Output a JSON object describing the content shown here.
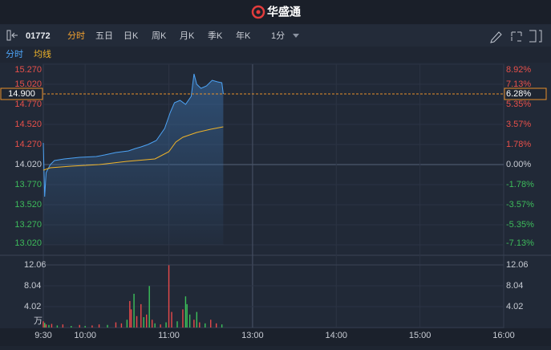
{
  "header": {
    "logo": "华盛通"
  },
  "toolbar": {
    "code": "01772",
    "tabs": [
      "分时",
      "五日",
      "日K",
      "周K",
      "月K",
      "季K",
      "年K"
    ],
    "active_tab": 0,
    "interval": "1分"
  },
  "chart_data": {
    "type": "line",
    "series": [
      {
        "name": "分时",
        "color": "#4da3f5",
        "x": [
          0,
          1,
          2,
          5,
          8,
          15,
          26,
          38,
          44,
          52,
          61,
          66,
          70,
          75,
          81,
          87,
          91,
          94,
          98,
          102,
          106,
          108,
          110,
          113,
          117,
          121,
          125,
          128,
          129
        ],
        "values": [
          14.29,
          13.62,
          13.92,
          14.02,
          14.07,
          14.09,
          14.11,
          14.12,
          14.14,
          14.17,
          14.19,
          14.22,
          14.24,
          14.27,
          14.32,
          14.47,
          14.67,
          14.79,
          14.82,
          14.77,
          14.87,
          15.15,
          15.02,
          14.97,
          15.0,
          15.07,
          15.05,
          15.04,
          14.9
        ]
      },
      {
        "name": "均线",
        "color": "#f0b429",
        "x": [
          0,
          5,
          20,
          40,
          60,
          80,
          90,
          95,
          100,
          110,
          120,
          129
        ],
        "values": [
          13.95,
          13.98,
          14.0,
          14.02,
          14.06,
          14.09,
          14.18,
          14.3,
          14.36,
          14.42,
          14.46,
          14.49
        ]
      }
    ],
    "xlim": [
      0,
      330
    ],
    "xticks": [
      {
        "value": 0,
        "label": "9:30"
      },
      {
        "value": 30,
        "label": "10:00"
      },
      {
        "value": 90,
        "label": "11:00"
      },
      {
        "value": 150,
        "label": "13:00"
      },
      {
        "value": 210,
        "label": "14:00"
      },
      {
        "value": 270,
        "label": "15:00"
      },
      {
        "value": 330,
        "label": "16:00"
      }
    ],
    "ylim": [
      13.02,
      15.27
    ],
    "yticks": [
      {
        "value": 15.27,
        "label": "15.270"
      },
      {
        "value": 15.02,
        "label": "15.020"
      },
      {
        "value": 14.77,
        "label": "14.770"
      },
      {
        "value": 14.52,
        "label": "14.520"
      },
      {
        "value": 14.27,
        "label": "14.270"
      },
      {
        "value": 14.02,
        "label": "14.020"
      },
      {
        "value": 13.77,
        "label": "13.770"
      },
      {
        "value": 13.52,
        "label": "13.520"
      },
      {
        "value": 13.27,
        "label": "13.270"
      },
      {
        "value": 13.02,
        "label": "13.020"
      }
    ],
    "y2lim": [
      -7.13,
      8.92
    ],
    "y2ticks": [
      {
        "value": 8.92,
        "label": "8.92%"
      },
      {
        "value": 7.13,
        "label": "7.13%"
      },
      {
        "value": 5.35,
        "label": "5.35%"
      },
      {
        "value": 3.57,
        "label": "3.57%"
      },
      {
        "value": 1.78,
        "label": "1.78%"
      },
      {
        "value": 0,
        "label": "0.00%"
      },
      {
        "value": -1.78,
        "label": "-1.78%"
      },
      {
        "value": -3.57,
        "label": "-3.57%"
      },
      {
        "value": -5.35,
        "label": "-5.35%"
      },
      {
        "value": -7.13,
        "label": "-7.13%"
      }
    ],
    "last_price": {
      "value": 14.9,
      "label": "14.900"
    },
    "last_change": {
      "value": 6.28,
      "label": "6.28%"
    },
    "grid": true,
    "volume": {
      "unit": "万",
      "ylim": [
        0,
        12.06
      ],
      "yticks": [
        12.06,
        8.04,
        4.02
      ],
      "x": [
        0,
        1,
        2,
        4,
        6,
        10,
        14,
        20,
        26,
        30,
        35,
        40,
        46,
        52,
        56,
        60,
        62,
        63,
        65,
        67,
        70,
        72,
        74,
        76,
        78,
        80,
        84,
        88,
        90,
        92,
        96,
        100,
        102,
        103,
        105,
        108,
        110,
        112,
        116,
        120,
        124,
        128
      ],
      "values": [
        1.2,
        0.9,
        0.6,
        0.5,
        0.7,
        0.4,
        0.6,
        0.3,
        0.5,
        0.3,
        0.4,
        0.6,
        0.5,
        1.0,
        0.8,
        1.5,
        5.1,
        3.5,
        6.5,
        2.2,
        4.5,
        2.0,
        2.5,
        8.0,
        1.5,
        0.8,
        0.6,
        1.0,
        12.0,
        3.0,
        1.2,
        3.5,
        6.0,
        4.5,
        2.5,
        1.5,
        3.0,
        1.0,
        0.8,
        1.5,
        0.8,
        0.6
      ],
      "colors": [
        "#e84a4a",
        "#3cc15a",
        "#e84a4a",
        "#3cc15a",
        "#e84a4a",
        "#3cc15a",
        "#e84a4a",
        "#3cc15a",
        "#e84a4a",
        "#3cc15a",
        "#e84a4a",
        "#e84a4a",
        "#3cc15a",
        "#e84a4a",
        "#e84a4a",
        "#3cc15a",
        "#e84a4a",
        "#e84a4a",
        "#3cc15a",
        "#e84a4a",
        "#e84a4a",
        "#3cc15a",
        "#e84a4a",
        "#3cc15a",
        "#e84a4a",
        "#3cc15a",
        "#e84a4a",
        "#3cc15a",
        "#e84a4a",
        "#e84a4a",
        "#3cc15a",
        "#e84a4a",
        "#3cc15a",
        "#3cc15a",
        "#3cc15a",
        "#e84a4a",
        "#3cc15a",
        "#e84a4a",
        "#3cc15a",
        "#e84a4a",
        "#e84a4a",
        "#3cc15a"
      ]
    }
  }
}
